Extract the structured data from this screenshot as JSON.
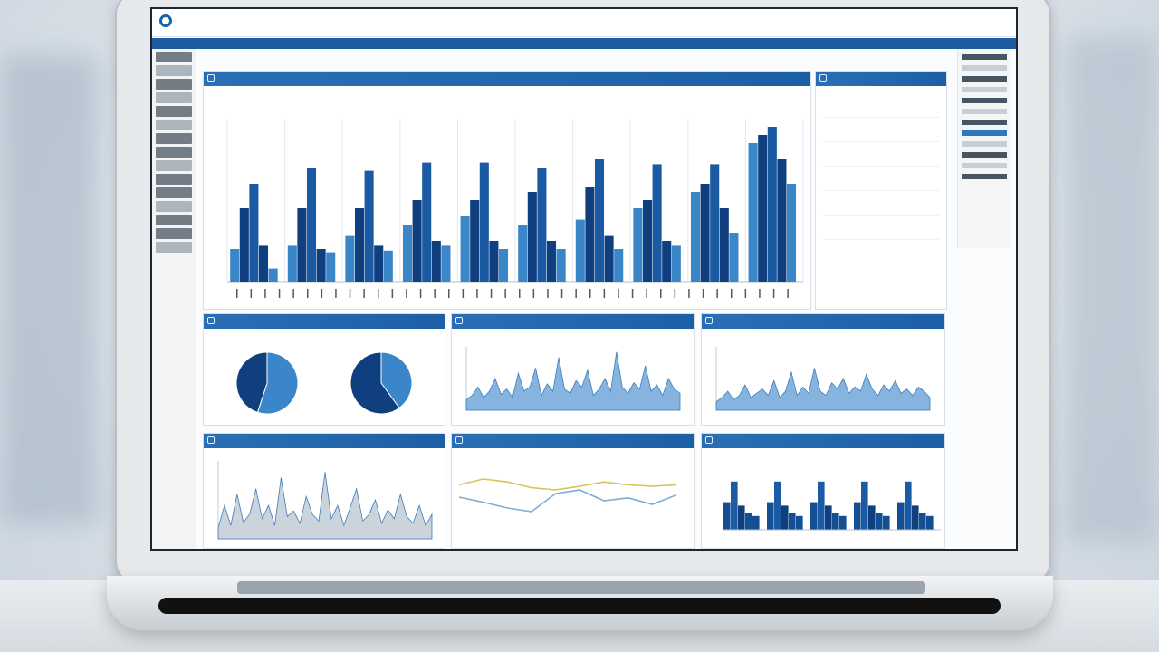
{
  "app": {
    "title": "",
    "search": "",
    "nav_label": "",
    "nav_right": "",
    "breadcrumb": "",
    "tools": ""
  },
  "colors": {
    "accent": "#1d5aa0",
    "bar_dark": "#0f3f7f",
    "bar_light": "#3a86c8",
    "line_yellow": "#d8c35a",
    "line_blue": "#7aaed8"
  },
  "main_panel": {
    "title": "",
    "subtitle": ""
  },
  "right_panel": {
    "title": "",
    "rows": [
      "",
      "",
      "",
      "",
      "",
      ""
    ]
  },
  "panels": [
    {
      "title": ""
    },
    {
      "title": ""
    },
    {
      "title": ""
    },
    {
      "title": ""
    },
    {
      "title": ""
    },
    {
      "title": ""
    }
  ],
  "chart_data": [
    {
      "type": "bar",
      "series": [
        {
          "name": "",
          "values": [
            20,
            45,
            60,
            22,
            8,
            22,
            45,
            70,
            20,
            18,
            28,
            45,
            68,
            22,
            19,
            35,
            50,
            73,
            25,
            22,
            40,
            50,
            73,
            25,
            20,
            35,
            55,
            70,
            25,
            20,
            38,
            58,
            75,
            28,
            20,
            45,
            50,
            72,
            25,
            22,
            55,
            60,
            72,
            45,
            30,
            85,
            90,
            95,
            75,
            60
          ]
        }
      ],
      "ylim": [
        0,
        100
      ]
    },
    {
      "type": "pie",
      "series": [
        {
          "name": "",
          "values": [
            55,
            45
          ]
        }
      ]
    },
    {
      "type": "pie",
      "series": [
        {
          "name": "",
          "values": [
            40,
            60
          ]
        }
      ]
    },
    {
      "type": "area",
      "values": [
        10,
        14,
        22,
        12,
        18,
        30,
        15,
        20,
        12,
        35,
        18,
        22,
        40,
        14,
        25,
        18,
        50,
        20,
        16,
        28,
        22,
        38,
        14,
        20,
        30,
        18,
        55,
        22,
        16,
        26,
        20,
        42,
        18,
        24,
        14,
        30,
        20,
        16
      ],
      "ylim": [
        0,
        60
      ]
    },
    {
      "type": "area",
      "values": [
        8,
        12,
        18,
        10,
        14,
        24,
        12,
        16,
        20,
        14,
        28,
        12,
        18,
        36,
        14,
        22,
        16,
        40,
        18,
        14,
        26,
        20,
        30,
        16,
        22,
        18,
        34,
        20,
        14,
        24,
        18,
        28,
        16,
        20,
        14,
        22,
        18,
        12
      ],
      "ylim": [
        0,
        60
      ]
    },
    {
      "type": "area",
      "values": [
        10,
        30,
        12,
        40,
        15,
        22,
        45,
        18,
        30,
        12,
        55,
        20,
        25,
        14,
        38,
        22,
        16,
        60,
        18,
        30,
        12,
        28,
        45,
        16,
        22,
        35,
        14,
        26,
        18,
        40,
        20,
        14,
        30,
        12,
        22
      ],
      "ylim": [
        0,
        70
      ]
    },
    {
      "type": "line",
      "series": [
        {
          "name": "",
          "values": [
            62,
            70,
            66,
            58,
            55,
            60,
            66,
            62,
            60,
            62
          ]
        },
        {
          "name": "",
          "values": [
            45,
            38,
            30,
            25,
            50,
            55,
            40,
            44,
            35,
            48
          ]
        }
      ],
      "ylim": [
        0,
        100
      ]
    },
    {
      "type": "bar",
      "values": [
        40,
        70,
        35,
        25,
        20,
        40,
        70,
        35,
        25,
        20,
        40,
        70,
        35,
        25,
        20,
        40,
        70,
        35,
        25,
        20,
        40,
        70,
        35,
        25,
        20
      ],
      "ylim": [
        0,
        100
      ]
    }
  ]
}
